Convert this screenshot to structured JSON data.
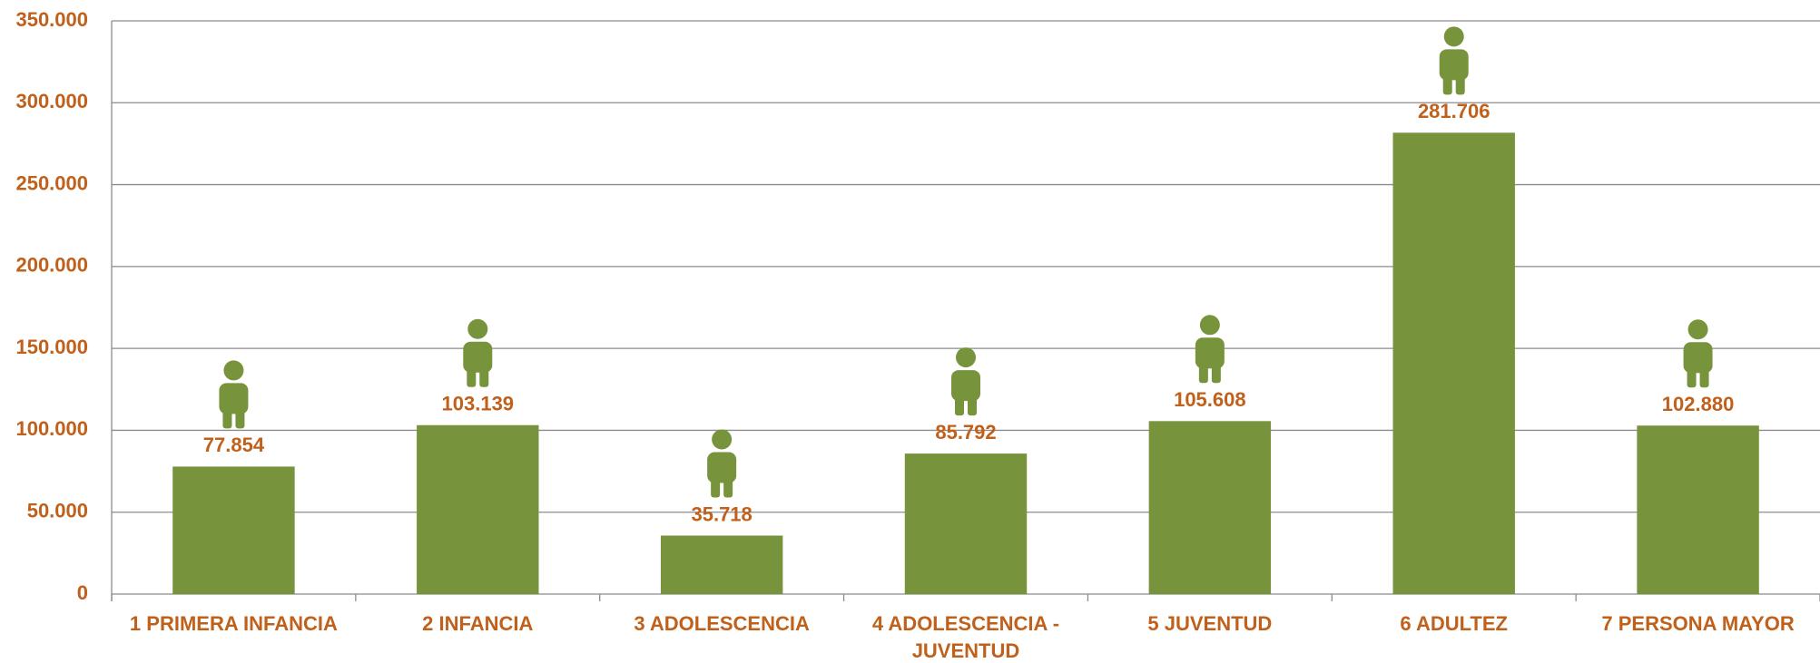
{
  "chart_data": {
    "type": "bar",
    "categories": [
      "1 PRIMERA INFANCIA",
      "2 INFANCIA",
      "3 ADOLESCENCIA",
      "4 ADOLESCENCIA - JUVENTUD",
      "5 JUVENTUD",
      "6 ADULTEZ",
      "7 PERSONA MAYOR"
    ],
    "values": [
      77854,
      103139,
      35718,
      85792,
      105608,
      281706,
      102880
    ],
    "value_labels": [
      "77.854",
      "103.139",
      "35.718",
      "85.792",
      "105.608",
      "281.706",
      "102.880"
    ],
    "color": "#77933c",
    "ylim": [
      0,
      350000
    ],
    "yticks": [
      0,
      {
        "value": 50000,
        "label": "50.000"
      },
      {
        "value": 100000,
        "label": "100.000"
      },
      {
        "value": 150000,
        "label": "150.000"
      },
      {
        "value": 200000,
        "label": "200.000"
      },
      {
        "value": 250000,
        "label": "250.000"
      },
      {
        "value": 300000,
        "label": "300.000"
      },
      {
        "value": 350000,
        "label": "350.000"
      }
    ],
    "grid": true
  }
}
